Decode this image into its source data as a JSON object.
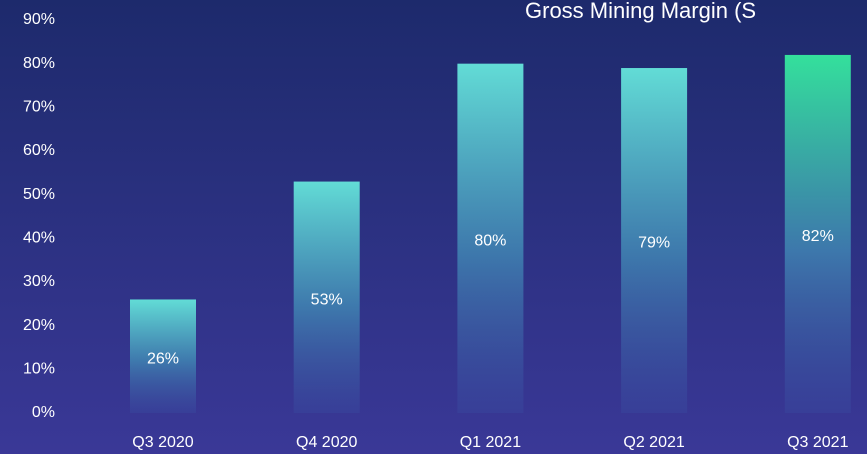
{
  "chart_data": {
    "type": "bar",
    "title": "Gross Mining Margin (S",
    "categories": [
      "Q3 2020",
      "Q4 2020",
      "Q1 2021",
      "Q2 2021",
      "Q3 2021"
    ],
    "values": [
      26,
      53,
      80,
      79,
      82
    ],
    "value_labels": [
      "26%",
      "53%",
      "80%",
      "79%",
      "82%"
    ],
    "colors": [
      "#62dcd6",
      "#62dcd6",
      "#62dcd6",
      "#62dcd6",
      "#34e09c"
    ],
    "ylim": [
      0,
      90
    ],
    "yticks": [
      {
        "value": 0,
        "label": "0%"
      },
      {
        "value": 10,
        "label": "10%"
      },
      {
        "value": 20,
        "label": "20%"
      },
      {
        "value": 30,
        "label": "30%"
      },
      {
        "value": 40,
        "label": "40%"
      },
      {
        "value": 50,
        "label": "50%"
      },
      {
        "value": 60,
        "label": "60%"
      },
      {
        "value": 70,
        "label": "70%"
      },
      {
        "value": 80,
        "label": "80%"
      },
      {
        "value": 90,
        "label": "90%"
      }
    ],
    "grid": false
  }
}
